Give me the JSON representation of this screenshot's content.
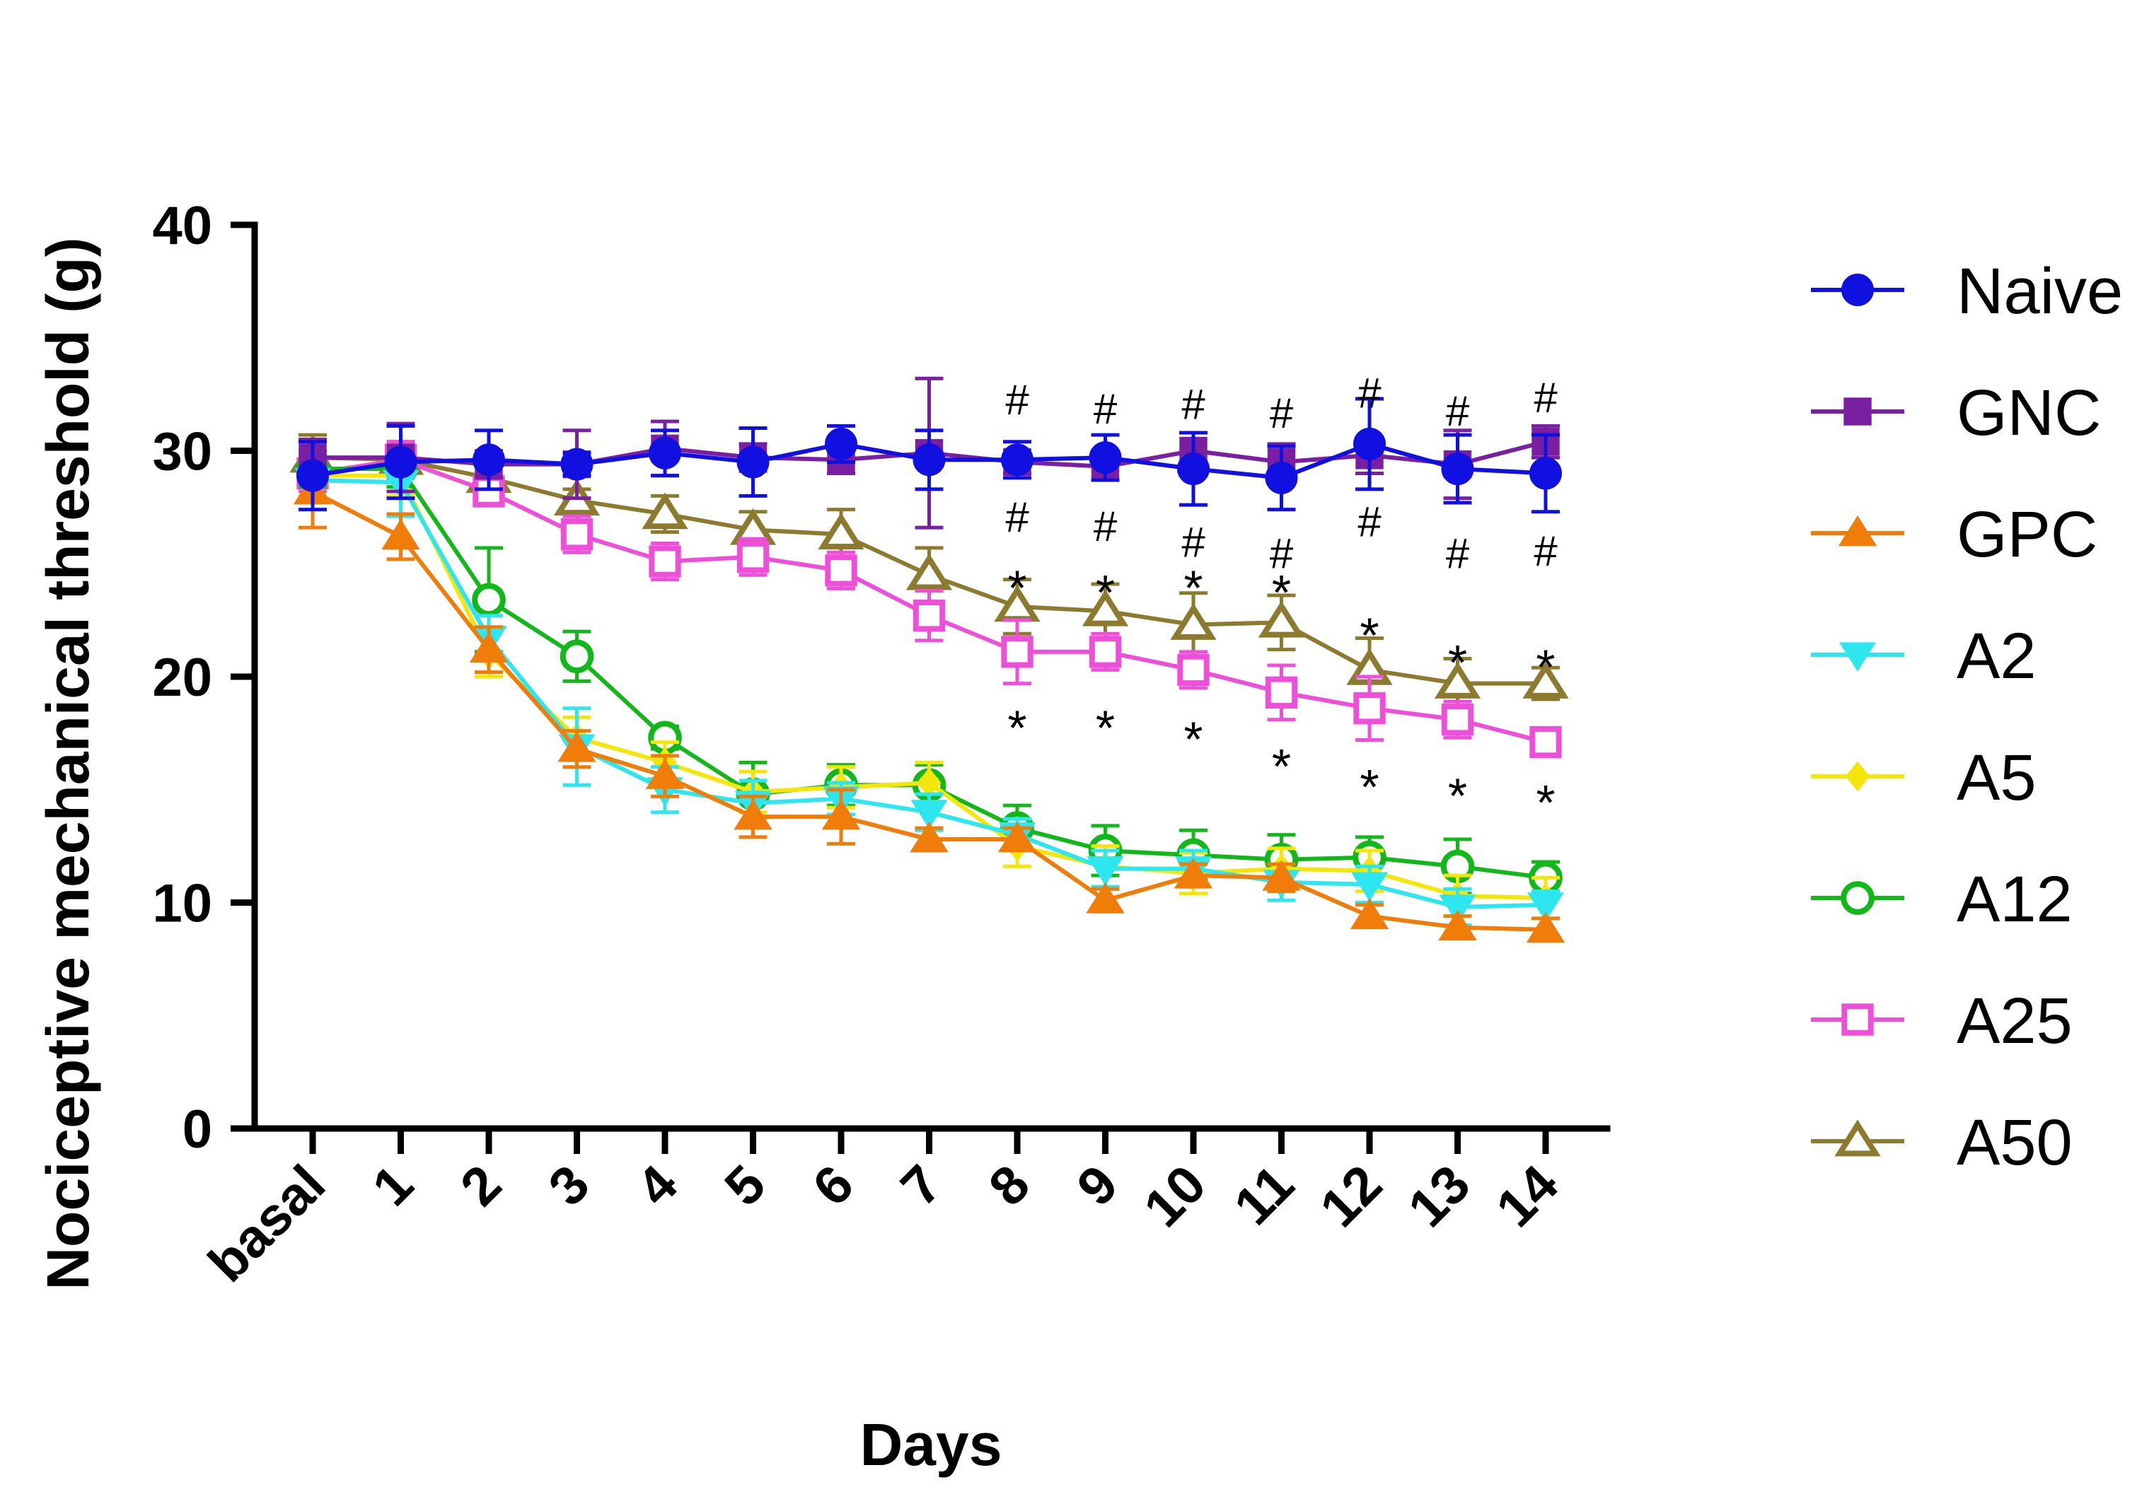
{
  "chart_data": {
    "type": "line",
    "title": "",
    "xlabel": "Days",
    "ylabel": "Nociceptive mechanical threshold (g)",
    "ylim": [
      0,
      40
    ],
    "yticks": [
      "0",
      "10",
      "20",
      "30",
      "40"
    ],
    "categories": [
      "basal",
      "1",
      "2",
      "3",
      "4",
      "5",
      "6",
      "7",
      "8",
      "9",
      "10",
      "11",
      "12",
      "13",
      "14"
    ],
    "legend_position": "right",
    "grid": false,
    "series": [
      {
        "name": "Naive",
        "color": "#1010e0",
        "marker": "circle-filled",
        "values": [
          28.9,
          29.5,
          29.6,
          29.4,
          29.9,
          29.5,
          30.3,
          29.6,
          29.6,
          29.7,
          29.2,
          28.8,
          30.3,
          29.2,
          29.0
        ],
        "errors": [
          1.5,
          1.6,
          1.3,
          0.5,
          1.0,
          1.5,
          0.8,
          1.3,
          0.8,
          1.0,
          1.6,
          1.4,
          2.0,
          1.5,
          1.7
        ]
      },
      {
        "name": "GNC",
        "color": "#7a1fa2",
        "marker": "square-filled",
        "values": [
          29.7,
          29.7,
          29.4,
          29.4,
          30.1,
          29.7,
          29.6,
          29.9,
          29.5,
          29.3,
          30.0,
          29.5,
          29.8,
          29.4,
          30.4
        ],
        "errors": [
          0.8,
          1.5,
          0.6,
          1.5,
          1.2,
          0.6,
          0.6,
          3.3,
          0.5,
          0.6,
          0.8,
          0.8,
          0.8,
          1.5,
          0.7
        ]
      },
      {
        "name": "GPC",
        "color": "#f07d0a",
        "marker": "triangle-up-filled",
        "values": [
          28.2,
          26.2,
          21.2,
          16.8,
          15.6,
          13.8,
          13.8,
          12.8,
          12.8,
          10.1,
          11.2,
          11.1,
          9.4,
          8.9,
          8.8
        ],
        "errors": [
          1.6,
          1.0,
          1.0,
          0.8,
          0.9,
          0.9,
          1.2,
          0.5,
          0.5,
          0.5,
          0.5,
          0.6,
          0.5,
          0.5,
          0.5
        ]
      },
      {
        "name": "A2",
        "color": "#2ee6f0",
        "marker": "triangle-down-filled",
        "values": [
          28.7,
          28.6,
          21.7,
          16.9,
          15.0,
          14.4,
          14.6,
          14.0,
          13.0,
          11.5,
          11.5,
          10.9,
          10.8,
          9.8,
          9.9
        ],
        "errors": [
          1.0,
          1.5,
          1.0,
          1.7,
          1.0,
          1.0,
          0.7,
          0.8,
          0.7,
          0.8,
          0.8,
          0.8,
          0.8,
          0.8,
          0.6
        ]
      },
      {
        "name": "A5",
        "color": "#f5e60a",
        "marker": "diamond-filled",
        "values": [
          28.9,
          28.9,
          21.0,
          17.3,
          16.2,
          14.9,
          15.1,
          15.3,
          12.5,
          11.6,
          11.3,
          11.5,
          11.4,
          10.3,
          10.2
        ],
        "errors": [
          0.9,
          0.9,
          1.0,
          0.9,
          0.9,
          0.9,
          0.9,
          0.9,
          0.9,
          0.9,
          0.9,
          0.9,
          0.9,
          0.9,
          0.9
        ]
      },
      {
        "name": "A12",
        "color": "#12b81a",
        "marker": "circle-open",
        "values": [
          29.2,
          29.2,
          23.4,
          20.9,
          17.3,
          14.8,
          15.2,
          15.2,
          13.3,
          12.3,
          12.1,
          11.9,
          12.0,
          11.6,
          11.1
        ],
        "errors": [
          0.8,
          0.8,
          2.3,
          1.1,
          0.5,
          1.4,
          0.9,
          0.9,
          1.0,
          1.1,
          1.1,
          1.1,
          0.9,
          1.2,
          0.7
        ]
      },
      {
        "name": "A25",
        "color": "#ee4fd8",
        "marker": "square-open",
        "values": [
          29.0,
          29.6,
          28.2,
          26.3,
          25.1,
          25.3,
          24.7,
          22.7,
          21.1,
          21.1,
          20.3,
          19.3,
          18.6,
          18.1,
          17.1
        ],
        "errors": [
          0.8,
          0.8,
          0.5,
          0.8,
          0.8,
          0.8,
          0.8,
          1.1,
          1.4,
          0.8,
          0.8,
          1.2,
          1.4,
          0.8,
          0.5
        ]
      },
      {
        "name": "A50",
        "color": "#8c7a2e",
        "marker": "triangle-up-open",
        "values": [
          29.7,
          29.6,
          28.8,
          27.8,
          27.2,
          26.5,
          26.3,
          24.5,
          23.1,
          22.9,
          22.3,
          22.4,
          20.3,
          19.7,
          19.7
        ],
        "errors": [
          1.0,
          0.8,
          0.5,
          0.5,
          0.8,
          0.8,
          1.1,
          1.2,
          1.2,
          1.2,
          1.4,
          1.2,
          1.4,
          1.1,
          0.7
        ]
      }
    ],
    "annotations": [
      {
        "category": "8",
        "marks": [
          {
            "text": "#",
            "value": 32.3
          },
          {
            "text": "#",
            "value": 27.1
          },
          {
            "text": "*",
            "value": 24.3
          },
          {
            "text": "*",
            "value": 18.1
          }
        ]
      },
      {
        "category": "9",
        "marks": [
          {
            "text": "#",
            "value": 31.9
          },
          {
            "text": "#",
            "value": 26.7
          },
          {
            "text": "*",
            "value": 24.1
          },
          {
            "text": "*",
            "value": 18.1
          }
        ]
      },
      {
        "category": "10",
        "marks": [
          {
            "text": "#",
            "value": 32.1
          },
          {
            "text": "#",
            "value": 26.0
          },
          {
            "text": "*",
            "value": 24.3
          },
          {
            "text": "*",
            "value": 17.6
          }
        ]
      },
      {
        "category": "11",
        "marks": [
          {
            "text": "#",
            "value": 31.7
          },
          {
            "text": "#",
            "value": 25.5
          },
          {
            "text": "*",
            "value": 24.1
          },
          {
            "text": "*",
            "value": 16.4
          }
        ]
      },
      {
        "category": "12",
        "marks": [
          {
            "text": "#",
            "value": 32.6
          },
          {
            "text": "#",
            "value": 26.9
          },
          {
            "text": "*",
            "value": 22.2
          },
          {
            "text": "*",
            "value": 15.5
          }
        ]
      },
      {
        "category": "13",
        "marks": [
          {
            "text": "#",
            "value": 31.8
          },
          {
            "text": "#",
            "value": 25.5
          },
          {
            "text": "*",
            "value": 21.0
          },
          {
            "text": "*",
            "value": 15.1
          }
        ]
      },
      {
        "category": "14",
        "marks": [
          {
            "text": "#",
            "value": 32.4
          },
          {
            "text": "#",
            "value": 25.6
          },
          {
            "text": "*",
            "value": 20.8
          },
          {
            "text": "*",
            "value": 14.8
          }
        ]
      }
    ]
  }
}
